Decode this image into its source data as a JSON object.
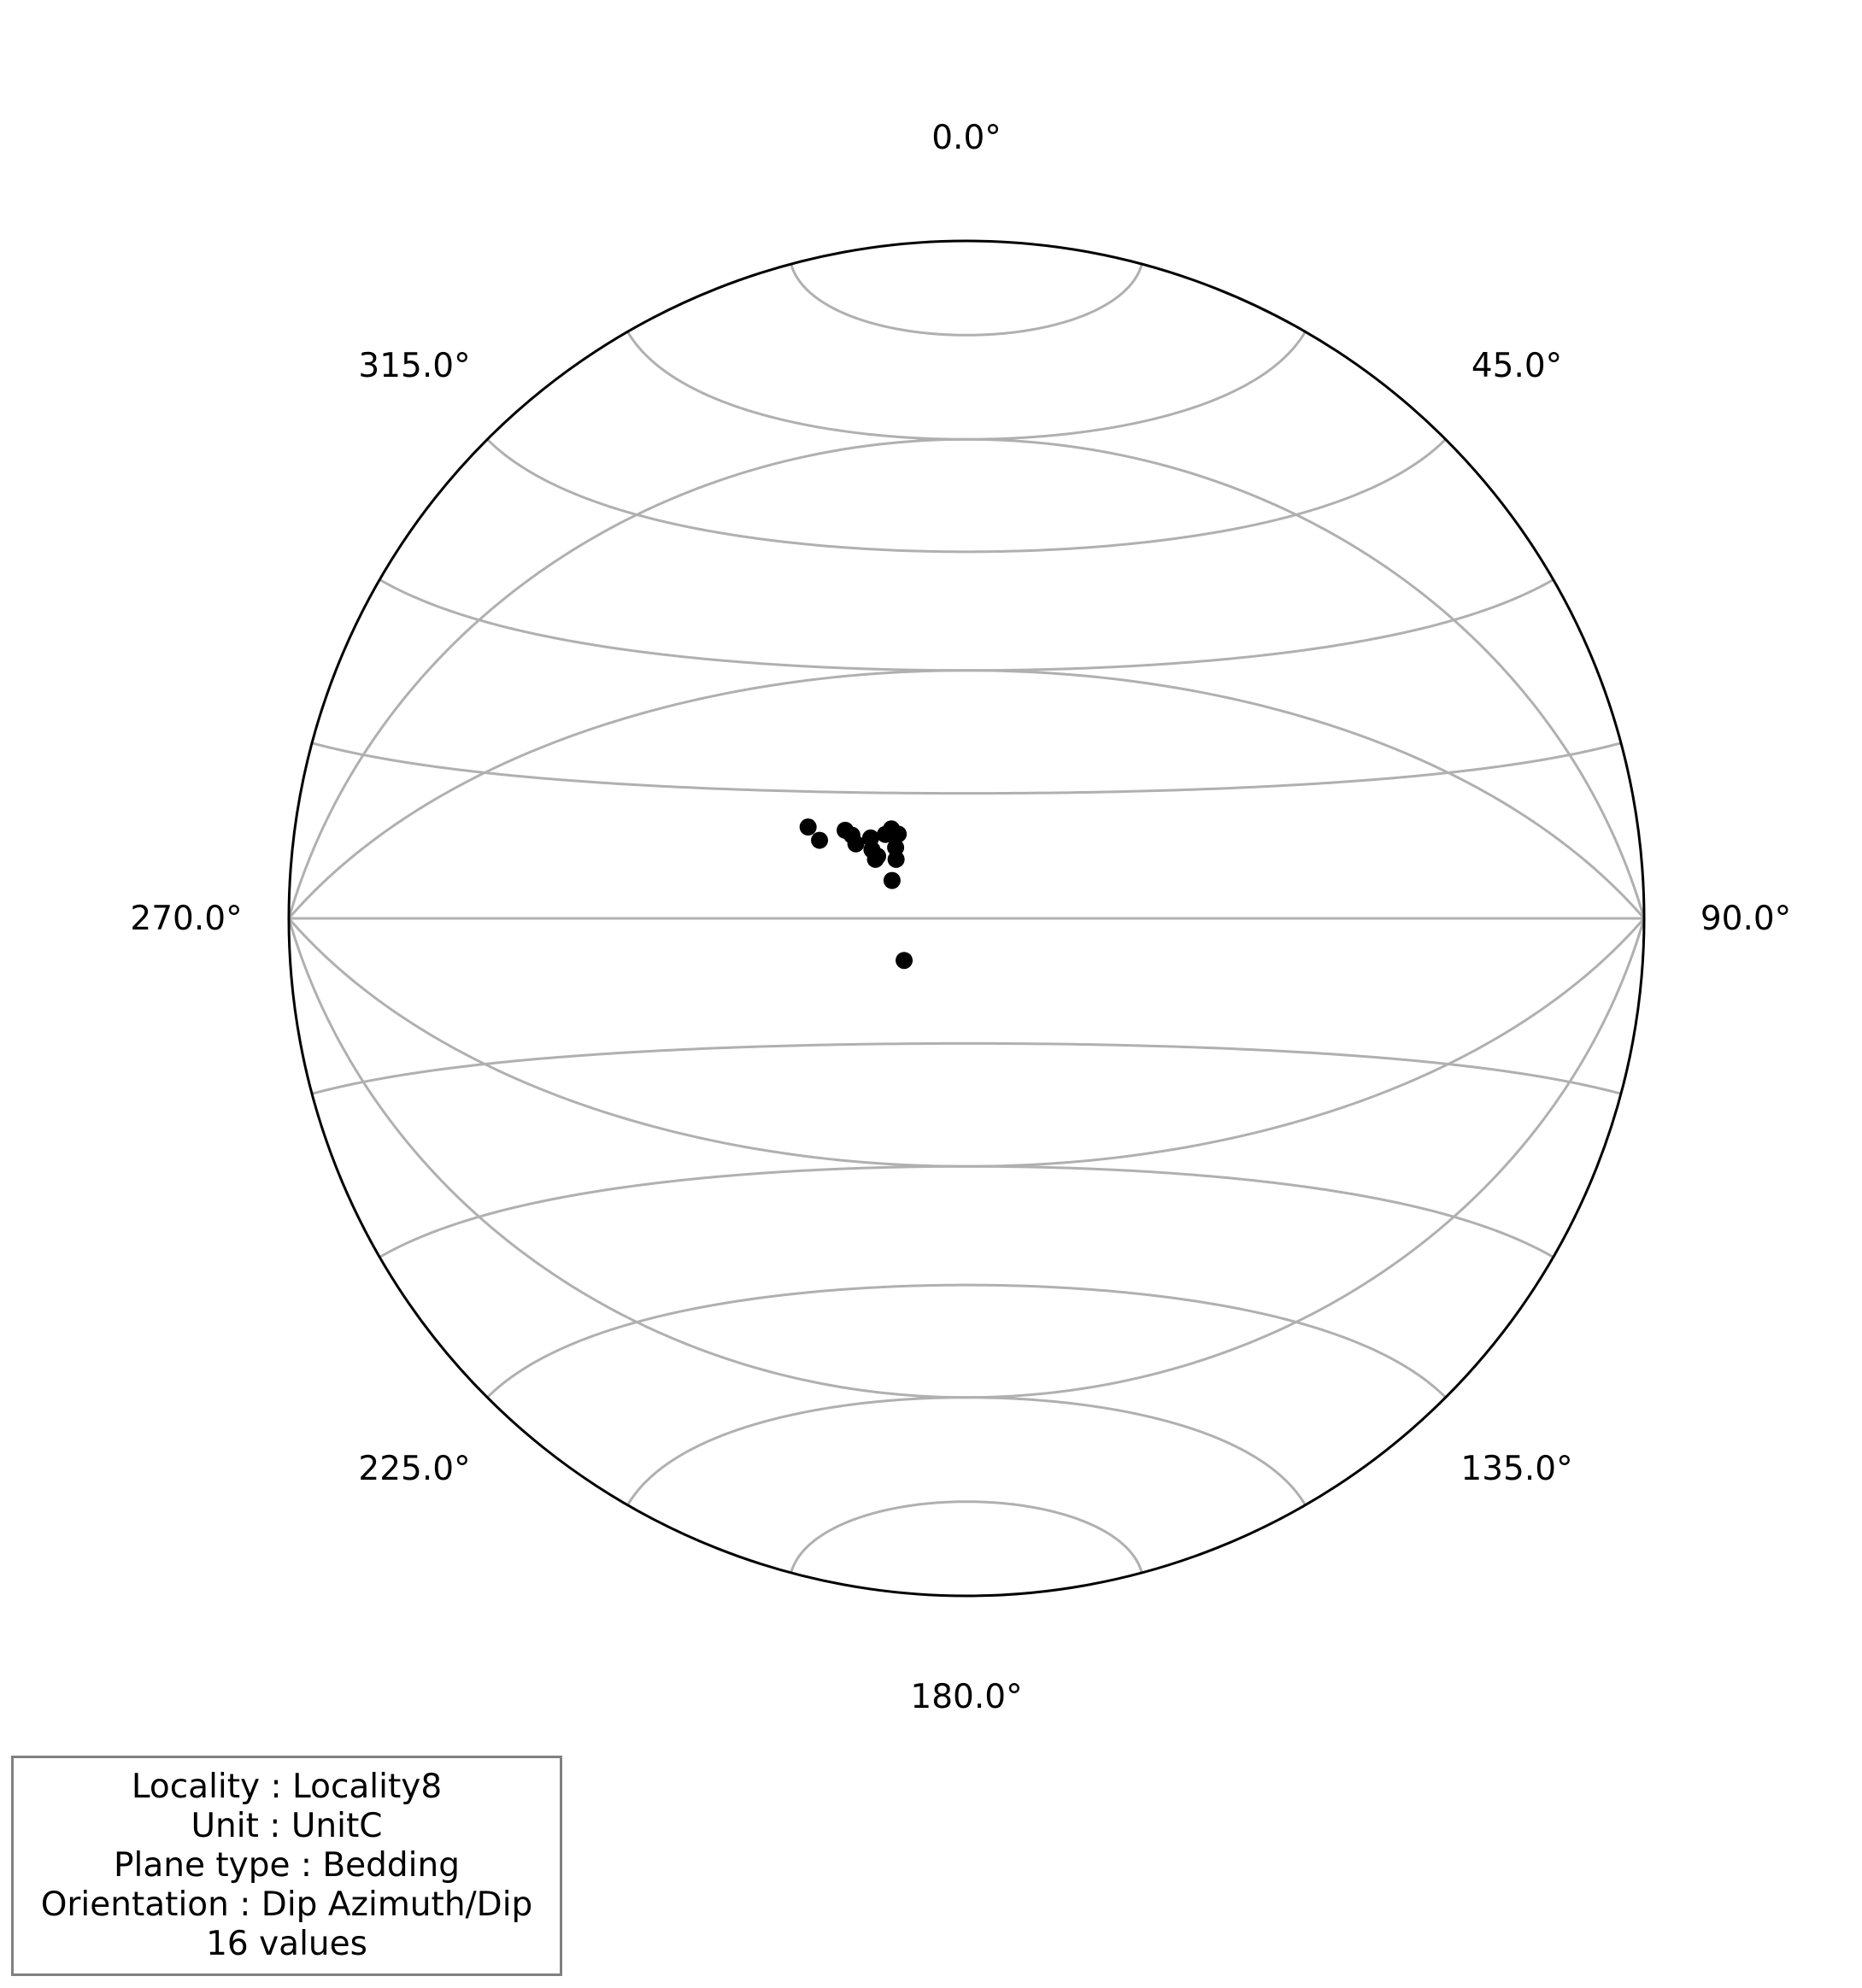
{
  "chart_data": {
    "type": "scatter",
    "projection": "equal-area stereonet (lower hemisphere)",
    "grid": true,
    "azimuth_tick_labels": [
      "0.0°",
      "45.0°",
      "90.0°",
      "135.0°",
      "180.0°",
      "225.0°",
      "270.0°",
      "315.0°"
    ],
    "points": [
      {
        "trend": 300,
        "plunge": 68
      },
      {
        "trend": 306,
        "plunge": 73
      },
      {
        "trend": 306,
        "plunge": 72
      },
      {
        "trend": 310,
        "plunge": 75
      },
      {
        "trend": 306,
        "plunge": 76
      },
      {
        "trend": 303,
        "plunge": 77
      },
      {
        "trend": 305,
        "plunge": 77
      },
      {
        "trend": 315,
        "plunge": 78
      },
      {
        "trend": 310,
        "plunge": 79
      },
      {
        "trend": 316,
        "plunge": 76
      },
      {
        "trend": 320,
        "plunge": 76
      },
      {
        "trend": 321,
        "plunge": 77
      },
      {
        "trend": 298,
        "plunge": 70
      },
      {
        "trend": 304,
        "plunge": 74
      },
      {
        "trend": 297,
        "plunge": 80
      },
      {
        "trend": 236,
        "plunge": 81
      }
    ]
  },
  "colors": {
    "grid": "#b0b0b0",
    "outline": "#000000",
    "points": "#000000",
    "box_border": "#808080"
  },
  "info": {
    "locality": "Locality : Locality8",
    "unit": "Unit : UnitC",
    "plane_type": "Plane type : Bedding",
    "orientation": "Orientation : Dip Azimuth/Dip",
    "count": "16 values"
  }
}
